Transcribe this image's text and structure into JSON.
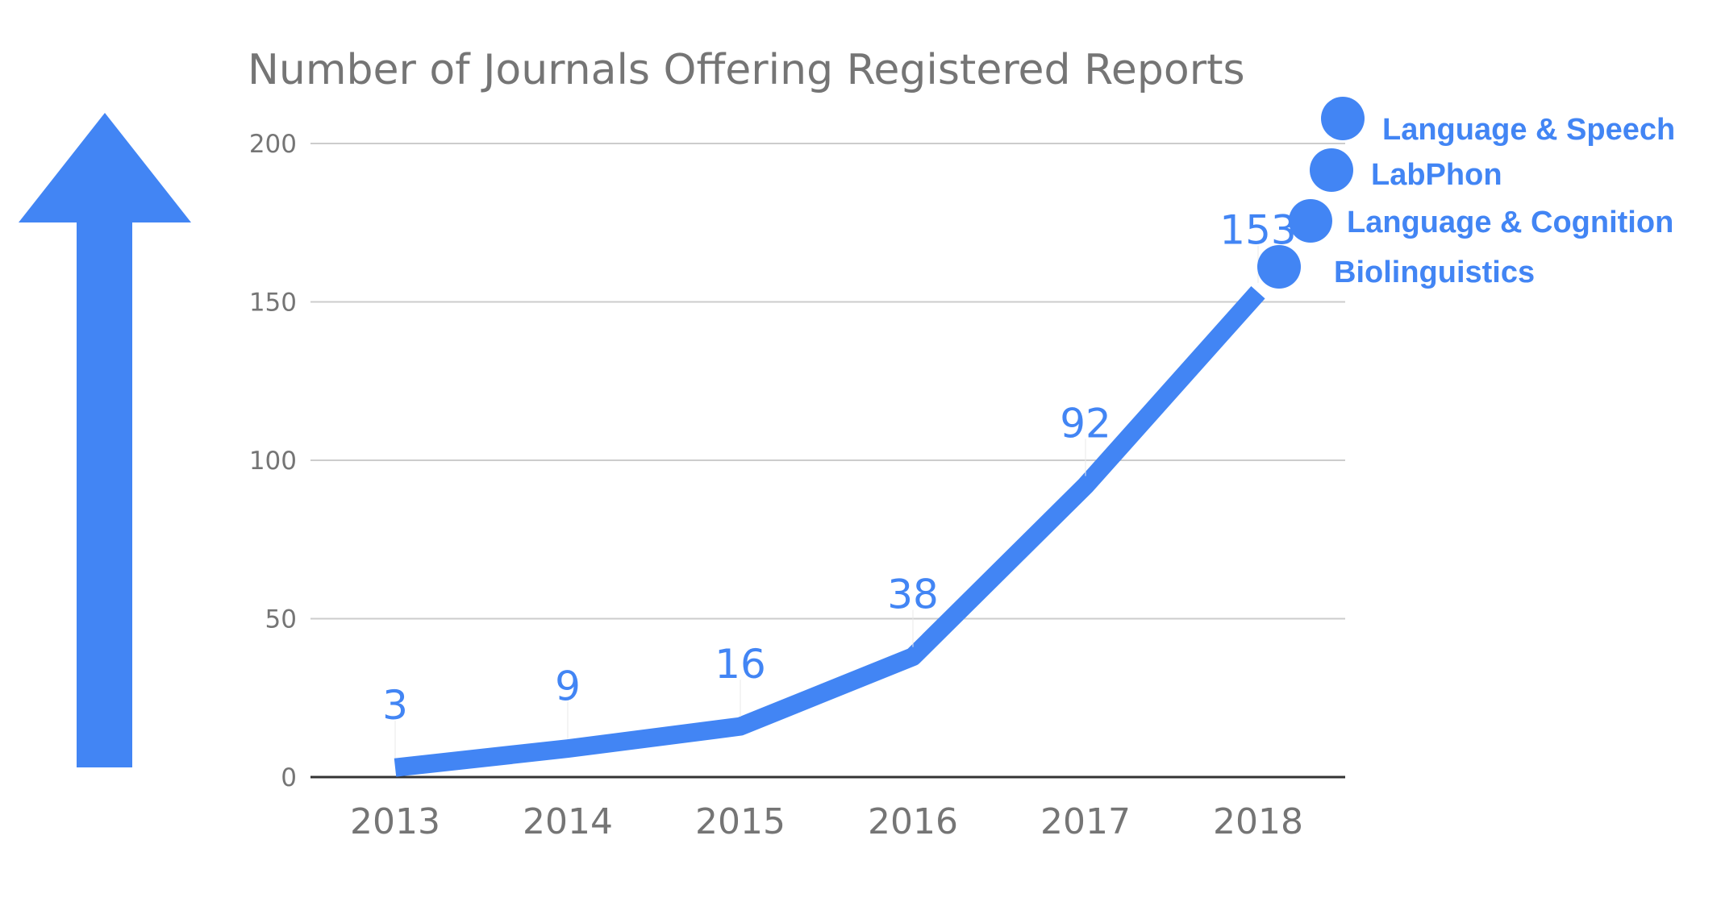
{
  "colors": {
    "accent": "#4285f4",
    "text": "#757575",
    "grid": "#cccccc",
    "axis": "#333333"
  },
  "chart_data": {
    "type": "line",
    "title": "Number of Journals Offering Registered Reports",
    "xlabel": "",
    "ylabel": "",
    "categories": [
      "2013",
      "2014",
      "2015",
      "2016",
      "2017",
      "2018"
    ],
    "series": [
      {
        "values": [
          3,
          9,
          16,
          38,
          92,
          153
        ]
      }
    ],
    "data_labels": [
      "3",
      "9",
      "16",
      "38",
      "92",
      "153"
    ],
    "ylim": [
      0,
      200
    ],
    "yticks": [
      "0",
      "50",
      "100",
      "150",
      "200"
    ],
    "grid": true,
    "annotations": [
      {
        "label": "Language & Speech"
      },
      {
        "label": "LabPhon"
      },
      {
        "label": "Language & Cognition"
      },
      {
        "label": "Biolinguistics"
      }
    ],
    "decoration": "up-arrow-icon"
  }
}
